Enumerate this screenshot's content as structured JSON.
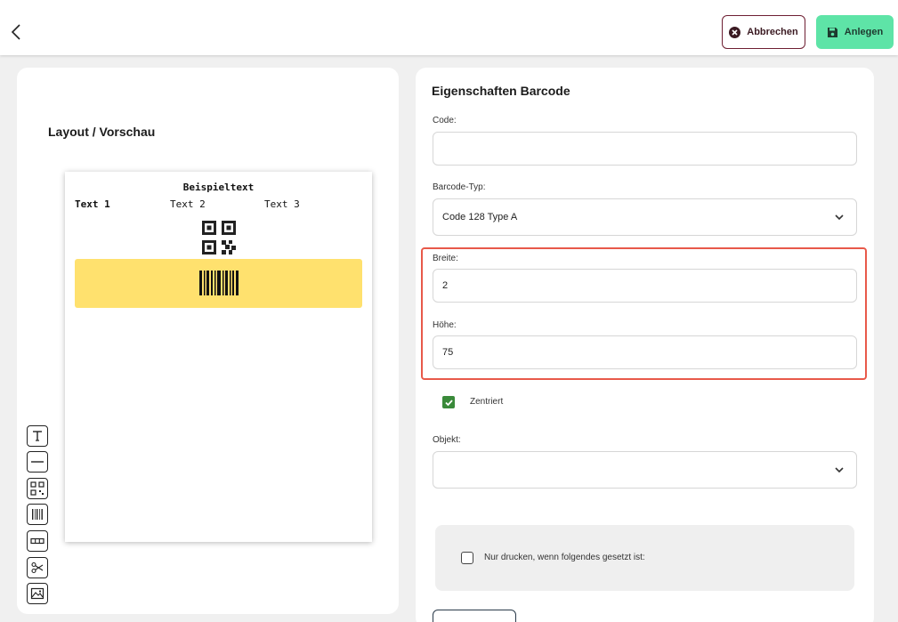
{
  "header": {
    "back_icon": "chevron-left-icon",
    "cancel_label": "Abbrechen",
    "cancel_icon": "close-circle-icon",
    "create_label": "Anlegen",
    "create_icon": "save-icon",
    "colors": {
      "cancel_border": "#6e1f33",
      "create_bg": "#5ee4a7"
    }
  },
  "layout": {
    "title": "Layout / Vorschau",
    "preview": {
      "title": "Beispieltext",
      "texts": [
        "Text 1",
        "Text 2",
        "Text 3"
      ],
      "barcode_highlight_color": "#ffe16e"
    },
    "tools": [
      "text-tool-icon",
      "line-tool-icon",
      "qr-code-tool-icon",
      "barcode-tool-icon",
      "table-tool-icon",
      "scissors-icon",
      "image-tool-icon"
    ]
  },
  "properties": {
    "title": "Eigenschaften Barcode",
    "code": {
      "label": "Code:",
      "value": ""
    },
    "barcode_type": {
      "label": "Barcode-Typ:",
      "value": "Code 128 Type A"
    },
    "width": {
      "label": "Breite:",
      "value": "2"
    },
    "height": {
      "label": "Höhe:",
      "value": "75"
    },
    "centered": {
      "label": "Zentriert",
      "checked": true
    },
    "object": {
      "label": "Objekt:",
      "value": ""
    },
    "condition": {
      "label": "Nur drucken, wenn folgendes gesetzt ist:",
      "checked": false
    },
    "highlight_color": "#e8594a"
  }
}
